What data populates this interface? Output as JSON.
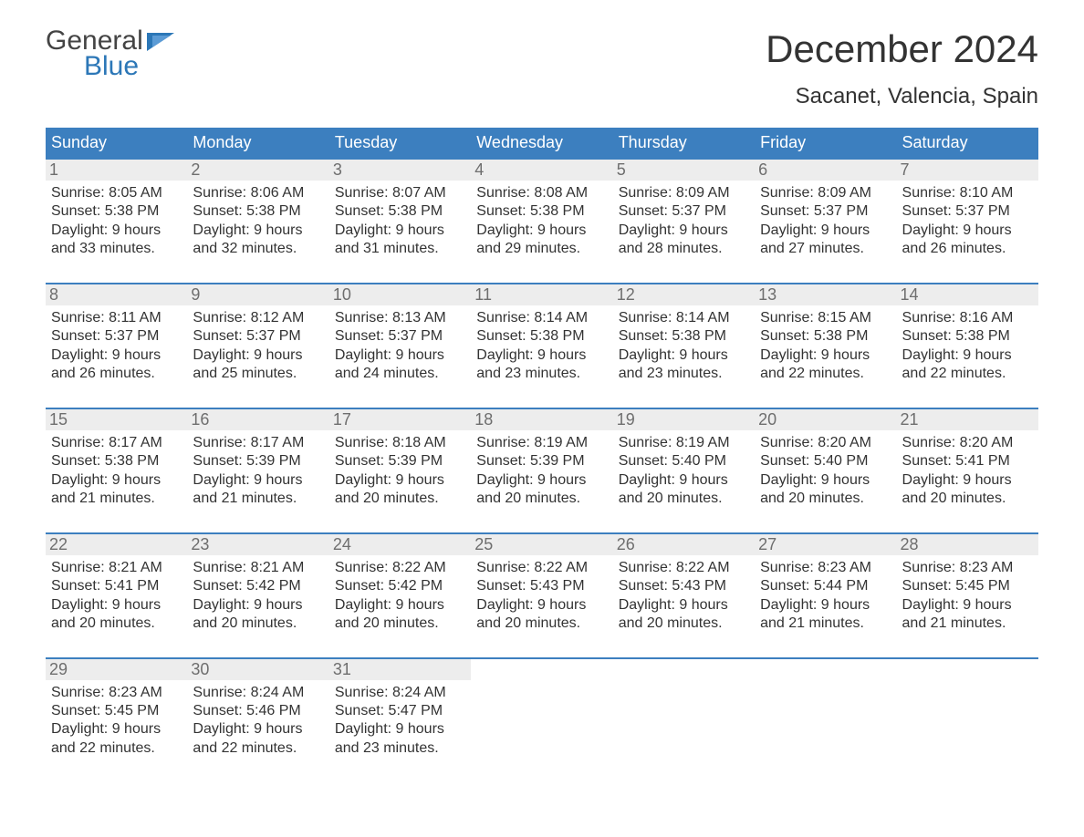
{
  "logo": {
    "text1": "General",
    "text2": "Blue"
  },
  "title": "December 2024",
  "location": "Sacanet, Valencia, Spain",
  "weekdays": [
    "Sunday",
    "Monday",
    "Tuesday",
    "Wednesday",
    "Thursday",
    "Friday",
    "Saturday"
  ],
  "colors": {
    "header_bg": "#3c7fbf",
    "header_text": "#ffffff",
    "accent": "#2c77b7",
    "daynum_bg": "#ededed",
    "daynum_text": "#6e6e6e",
    "body_text": "#333333",
    "logo_gray": "#444444",
    "background": "#ffffff"
  },
  "typography": {
    "title_fontsize": 42,
    "location_fontsize": 24,
    "header_fontsize": 18,
    "daynum_fontsize": 18,
    "body_fontsize": 16
  },
  "weeks": [
    [
      {
        "n": "1",
        "sunrise": "Sunrise: 8:05 AM",
        "sunset": "Sunset: 5:38 PM",
        "dl1": "Daylight: 9 hours",
        "dl2": "and 33 minutes."
      },
      {
        "n": "2",
        "sunrise": "Sunrise: 8:06 AM",
        "sunset": "Sunset: 5:38 PM",
        "dl1": "Daylight: 9 hours",
        "dl2": "and 32 minutes."
      },
      {
        "n": "3",
        "sunrise": "Sunrise: 8:07 AM",
        "sunset": "Sunset: 5:38 PM",
        "dl1": "Daylight: 9 hours",
        "dl2": "and 31 minutes."
      },
      {
        "n": "4",
        "sunrise": "Sunrise: 8:08 AM",
        "sunset": "Sunset: 5:38 PM",
        "dl1": "Daylight: 9 hours",
        "dl2": "and 29 minutes."
      },
      {
        "n": "5",
        "sunrise": "Sunrise: 8:09 AM",
        "sunset": "Sunset: 5:37 PM",
        "dl1": "Daylight: 9 hours",
        "dl2": "and 28 minutes."
      },
      {
        "n": "6",
        "sunrise": "Sunrise: 8:09 AM",
        "sunset": "Sunset: 5:37 PM",
        "dl1": "Daylight: 9 hours",
        "dl2": "and 27 minutes."
      },
      {
        "n": "7",
        "sunrise": "Sunrise: 8:10 AM",
        "sunset": "Sunset: 5:37 PM",
        "dl1": "Daylight: 9 hours",
        "dl2": "and 26 minutes."
      }
    ],
    [
      {
        "n": "8",
        "sunrise": "Sunrise: 8:11 AM",
        "sunset": "Sunset: 5:37 PM",
        "dl1": "Daylight: 9 hours",
        "dl2": "and 26 minutes."
      },
      {
        "n": "9",
        "sunrise": "Sunrise: 8:12 AM",
        "sunset": "Sunset: 5:37 PM",
        "dl1": "Daylight: 9 hours",
        "dl2": "and 25 minutes."
      },
      {
        "n": "10",
        "sunrise": "Sunrise: 8:13 AM",
        "sunset": "Sunset: 5:37 PM",
        "dl1": "Daylight: 9 hours",
        "dl2": "and 24 minutes."
      },
      {
        "n": "11",
        "sunrise": "Sunrise: 8:14 AM",
        "sunset": "Sunset: 5:38 PM",
        "dl1": "Daylight: 9 hours",
        "dl2": "and 23 minutes."
      },
      {
        "n": "12",
        "sunrise": "Sunrise: 8:14 AM",
        "sunset": "Sunset: 5:38 PM",
        "dl1": "Daylight: 9 hours",
        "dl2": "and 23 minutes."
      },
      {
        "n": "13",
        "sunrise": "Sunrise: 8:15 AM",
        "sunset": "Sunset: 5:38 PM",
        "dl1": "Daylight: 9 hours",
        "dl2": "and 22 minutes."
      },
      {
        "n": "14",
        "sunrise": "Sunrise: 8:16 AM",
        "sunset": "Sunset: 5:38 PM",
        "dl1": "Daylight: 9 hours",
        "dl2": "and 22 minutes."
      }
    ],
    [
      {
        "n": "15",
        "sunrise": "Sunrise: 8:17 AM",
        "sunset": "Sunset: 5:38 PM",
        "dl1": "Daylight: 9 hours",
        "dl2": "and 21 minutes."
      },
      {
        "n": "16",
        "sunrise": "Sunrise: 8:17 AM",
        "sunset": "Sunset: 5:39 PM",
        "dl1": "Daylight: 9 hours",
        "dl2": "and 21 minutes."
      },
      {
        "n": "17",
        "sunrise": "Sunrise: 8:18 AM",
        "sunset": "Sunset: 5:39 PM",
        "dl1": "Daylight: 9 hours",
        "dl2": "and 20 minutes."
      },
      {
        "n": "18",
        "sunrise": "Sunrise: 8:19 AM",
        "sunset": "Sunset: 5:39 PM",
        "dl1": "Daylight: 9 hours",
        "dl2": "and 20 minutes."
      },
      {
        "n": "19",
        "sunrise": "Sunrise: 8:19 AM",
        "sunset": "Sunset: 5:40 PM",
        "dl1": "Daylight: 9 hours",
        "dl2": "and 20 minutes."
      },
      {
        "n": "20",
        "sunrise": "Sunrise: 8:20 AM",
        "sunset": "Sunset: 5:40 PM",
        "dl1": "Daylight: 9 hours",
        "dl2": "and 20 minutes."
      },
      {
        "n": "21",
        "sunrise": "Sunrise: 8:20 AM",
        "sunset": "Sunset: 5:41 PM",
        "dl1": "Daylight: 9 hours",
        "dl2": "and 20 minutes."
      }
    ],
    [
      {
        "n": "22",
        "sunrise": "Sunrise: 8:21 AM",
        "sunset": "Sunset: 5:41 PM",
        "dl1": "Daylight: 9 hours",
        "dl2": "and 20 minutes."
      },
      {
        "n": "23",
        "sunrise": "Sunrise: 8:21 AM",
        "sunset": "Sunset: 5:42 PM",
        "dl1": "Daylight: 9 hours",
        "dl2": "and 20 minutes."
      },
      {
        "n": "24",
        "sunrise": "Sunrise: 8:22 AM",
        "sunset": "Sunset: 5:42 PM",
        "dl1": "Daylight: 9 hours",
        "dl2": "and 20 minutes."
      },
      {
        "n": "25",
        "sunrise": "Sunrise: 8:22 AM",
        "sunset": "Sunset: 5:43 PM",
        "dl1": "Daylight: 9 hours",
        "dl2": "and 20 minutes."
      },
      {
        "n": "26",
        "sunrise": "Sunrise: 8:22 AM",
        "sunset": "Sunset: 5:43 PM",
        "dl1": "Daylight: 9 hours",
        "dl2": "and 20 minutes."
      },
      {
        "n": "27",
        "sunrise": "Sunrise: 8:23 AM",
        "sunset": "Sunset: 5:44 PM",
        "dl1": "Daylight: 9 hours",
        "dl2": "and 21 minutes."
      },
      {
        "n": "28",
        "sunrise": "Sunrise: 8:23 AM",
        "sunset": "Sunset: 5:45 PM",
        "dl1": "Daylight: 9 hours",
        "dl2": "and 21 minutes."
      }
    ],
    [
      {
        "n": "29",
        "sunrise": "Sunrise: 8:23 AM",
        "sunset": "Sunset: 5:45 PM",
        "dl1": "Daylight: 9 hours",
        "dl2": "and 22 minutes."
      },
      {
        "n": "30",
        "sunrise": "Sunrise: 8:24 AM",
        "sunset": "Sunset: 5:46 PM",
        "dl1": "Daylight: 9 hours",
        "dl2": "and 22 minutes."
      },
      {
        "n": "31",
        "sunrise": "Sunrise: 8:24 AM",
        "sunset": "Sunset: 5:47 PM",
        "dl1": "Daylight: 9 hours",
        "dl2": "and 23 minutes."
      },
      {
        "empty": true
      },
      {
        "empty": true
      },
      {
        "empty": true
      },
      {
        "empty": true
      }
    ]
  ]
}
